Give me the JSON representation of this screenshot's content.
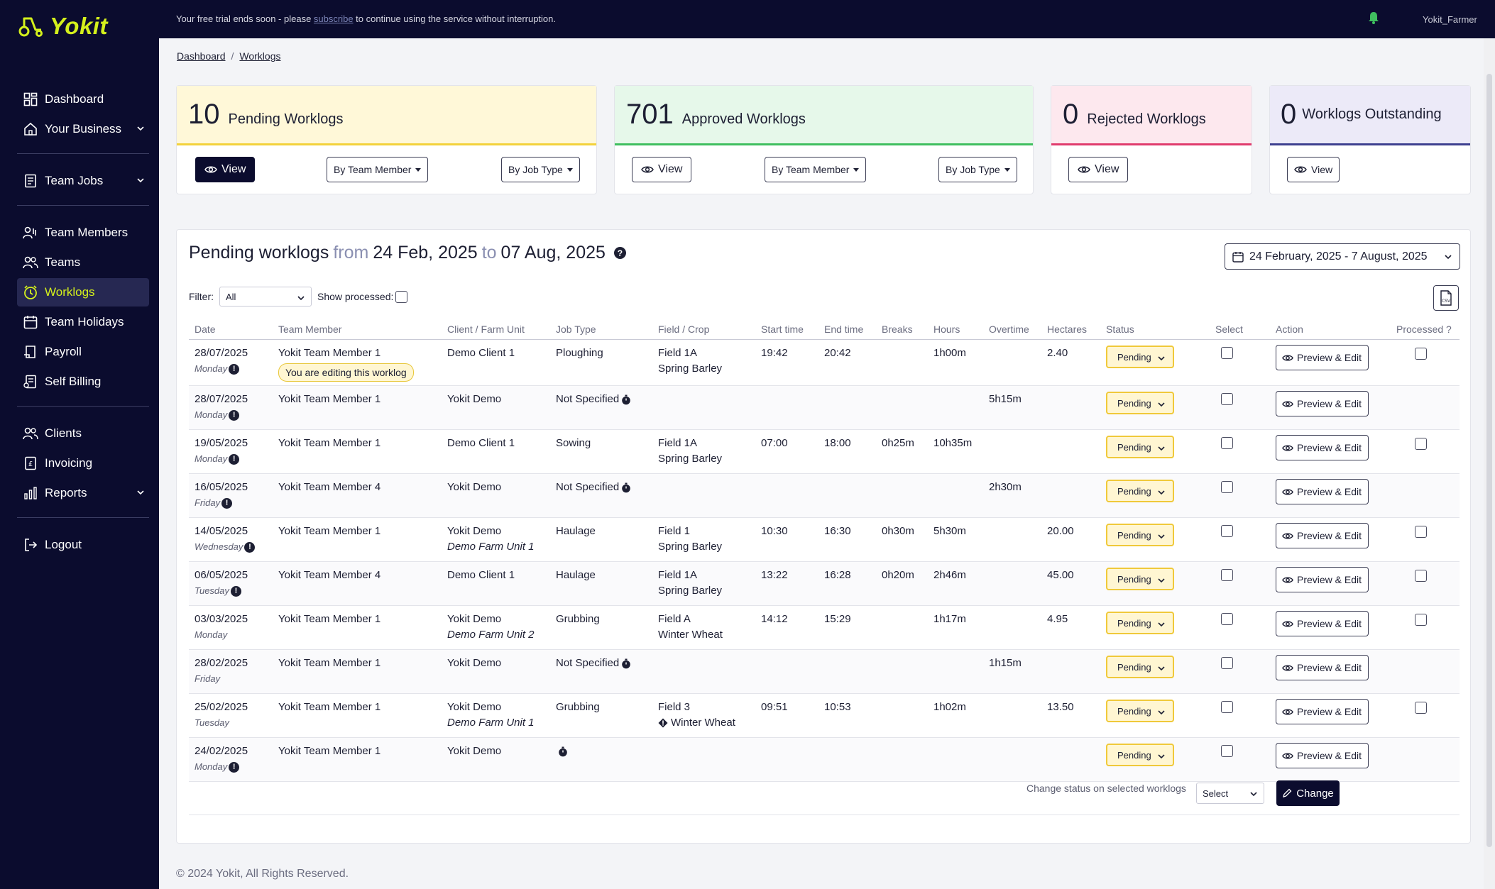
{
  "app": {
    "logo_text": "Yokit"
  },
  "topbar": {
    "trial_before": "Your free trial ends soon - please ",
    "trial_link": "subscribe",
    "trial_after": " to continue using the service without interruption.",
    "username": "Yokit_Farmer"
  },
  "sidebar": {
    "items": [
      {
        "label": "Dashboard",
        "icon": "dashboard-icon"
      },
      {
        "label": "Your Business",
        "icon": "home-icon"
      },
      {
        "label": "Team Jobs",
        "icon": "jobs-icon"
      },
      {
        "label": "Team Members",
        "icon": "team-members-icon"
      },
      {
        "label": "Teams",
        "icon": "teams-icon"
      },
      {
        "label": "Worklogs",
        "icon": "clock-icon"
      },
      {
        "label": "Team Holidays",
        "icon": "calendar-icon"
      },
      {
        "label": "Payroll",
        "icon": "payroll-icon"
      },
      {
        "label": "Self Billing",
        "icon": "self-billing-icon"
      },
      {
        "label": "Clients",
        "icon": "clients-icon"
      },
      {
        "label": "Invoicing",
        "icon": "invoice-icon"
      },
      {
        "label": "Reports",
        "icon": "reports-icon"
      },
      {
        "label": "Logout",
        "icon": "logout-icon"
      }
    ]
  },
  "breadcrumb": {
    "home": "Dashboard",
    "sep": "/",
    "current": "Worklogs"
  },
  "cards": {
    "pending": {
      "count": "10",
      "label": "Pending Worklogs",
      "color": "#f3d23b"
    },
    "approved": {
      "count": "701",
      "label": "Approved Worklogs",
      "color": "#3fbf5f"
    },
    "rejected": {
      "count": "0",
      "label": "Rejected Worklogs",
      "color": "#e03b6d"
    },
    "outstanding": {
      "count": "0",
      "label": "Worklogs Outstanding",
      "color": "#3d3f8f"
    },
    "view_label": "View",
    "by_member": "By Team Member",
    "by_job": "By Job Type"
  },
  "panel": {
    "title": "Pending worklogs",
    "from": "from",
    "from_date": "24 Feb, 2025",
    "to": "to",
    "to_date": "07 Aug, 2025",
    "date_range": "24 February, 2025 - 7 August, 2025",
    "filter_label": "Filter:",
    "filter_value": "All",
    "show_processed": "Show processed:"
  },
  "table": {
    "headers": [
      "Date",
      "Team Member",
      "Client / Farm Unit",
      "Job Type",
      "Field / Crop",
      "Start time",
      "End time",
      "Breaks",
      "Hours",
      "Overtime",
      "Hectares",
      "Status",
      "Select",
      "Action",
      "Processed ?"
    ],
    "editing_badge": "You are editing this worklog",
    "status_label": "Pending",
    "action_label": "Preview & Edit",
    "rows": [
      {
        "date": "28/07/2025",
        "day": "Monday",
        "alert": true,
        "member": "Yokit Team Member 1",
        "editing": true,
        "client": "Demo Client 1",
        "farm": "",
        "job": "Ploughing",
        "job_timer": false,
        "field": "Field 1A",
        "crop": "Spring Barley",
        "crop_warn": false,
        "start": "19:42",
        "end": "20:42",
        "breaks": "",
        "hours": "1h00m",
        "overtime": "",
        "hectares": "2.40",
        "processed_box": true
      },
      {
        "date": "28/07/2025",
        "day": "Monday",
        "alert": true,
        "member": "Yokit Team Member 1",
        "editing": false,
        "client": "Yokit Demo",
        "farm": "",
        "job": "Not Specified",
        "job_timer": true,
        "field": "",
        "crop": "",
        "crop_warn": false,
        "start": "",
        "end": "",
        "breaks": "",
        "hours": "",
        "overtime": "5h15m",
        "hectares": "",
        "processed_box": false
      },
      {
        "date": "19/05/2025",
        "day": "Monday",
        "alert": true,
        "member": "Yokit Team Member 1",
        "editing": false,
        "client": "Demo Client 1",
        "farm": "",
        "job": "Sowing",
        "job_timer": false,
        "field": "Field 1A",
        "crop": "Spring Barley",
        "crop_warn": false,
        "start": "07:00",
        "end": "18:00",
        "breaks": "0h25m",
        "hours": "10h35m",
        "overtime": "",
        "hectares": "",
        "processed_box": true
      },
      {
        "date": "16/05/2025",
        "day": "Friday",
        "alert": true,
        "member": "Yokit Team Member 4",
        "editing": false,
        "client": "Yokit Demo",
        "farm": "",
        "job": "Not Specified",
        "job_timer": true,
        "field": "",
        "crop": "",
        "crop_warn": false,
        "start": "",
        "end": "",
        "breaks": "",
        "hours": "",
        "overtime": "2h30m",
        "hectares": "",
        "processed_box": false
      },
      {
        "date": "14/05/2025",
        "day": "Wednesday",
        "alert": true,
        "member": "Yokit Team Member 1",
        "editing": false,
        "client": "Yokit Demo",
        "farm": "Demo Farm Unit 1",
        "job": "Haulage",
        "job_timer": false,
        "field": "Field 1",
        "crop": "Spring Barley",
        "crop_warn": false,
        "start": "10:30",
        "end": "16:30",
        "breaks": "0h30m",
        "hours": "5h30m",
        "overtime": "",
        "hectares": "20.00",
        "processed_box": true
      },
      {
        "date": "06/05/2025",
        "day": "Tuesday",
        "alert": true,
        "member": "Yokit Team Member 4",
        "editing": false,
        "client": "Demo Client 1",
        "farm": "",
        "job": "Haulage",
        "job_timer": false,
        "field": "Field 1A",
        "crop": "Spring Barley",
        "crop_warn": false,
        "start": "13:22",
        "end": "16:28",
        "breaks": "0h20m",
        "hours": "2h46m",
        "overtime": "",
        "hectares": "45.00",
        "processed_box": true
      },
      {
        "date": "03/03/2025",
        "day": "Monday",
        "alert": false,
        "member": "Yokit Team Member 1",
        "editing": false,
        "client": "Yokit Demo",
        "farm": "Demo Farm Unit 2",
        "job": "Grubbing",
        "job_timer": false,
        "field": "Field A",
        "crop": "Winter Wheat",
        "crop_warn": false,
        "start": "14:12",
        "end": "15:29",
        "breaks": "",
        "hours": "1h17m",
        "overtime": "",
        "hectares": "4.95",
        "processed_box": true
      },
      {
        "date": "28/02/2025",
        "day": "Friday",
        "alert": false,
        "member": "Yokit Team Member 1",
        "editing": false,
        "client": "Yokit Demo",
        "farm": "",
        "job": "Not Specified",
        "job_timer": true,
        "field": "",
        "crop": "",
        "crop_warn": false,
        "start": "",
        "end": "",
        "breaks": "",
        "hours": "",
        "overtime": "1h15m",
        "hectares": "",
        "processed_box": false
      },
      {
        "date": "25/02/2025",
        "day": "Tuesday",
        "alert": false,
        "member": "Yokit Team Member 1",
        "editing": false,
        "client": "Yokit Demo",
        "farm": "Demo Farm Unit 1",
        "job": "Grubbing",
        "job_timer": false,
        "field": "Field 3",
        "crop": "Winter Wheat",
        "crop_warn": true,
        "start": "09:51",
        "end": "10:53",
        "breaks": "",
        "hours": "1h02m",
        "overtime": "",
        "hectares": "13.50",
        "processed_box": true
      },
      {
        "date": "24/02/2025",
        "day": "Monday",
        "alert": true,
        "member": "Yokit Team Member 1",
        "editing": false,
        "client": "Yokit Demo",
        "farm": "",
        "job": "",
        "job_timer": true,
        "field": "",
        "crop": "",
        "crop_warn": false,
        "start": "",
        "end": "",
        "breaks": "",
        "hours": "",
        "overtime": "",
        "hectares": "",
        "processed_box": false
      }
    ]
  },
  "bulk": {
    "label": "Change status on selected worklogs",
    "select_value": "Select",
    "button": "Change"
  },
  "footer": {
    "copyright": "© 2024 Yokit, All Rights Reserved."
  }
}
